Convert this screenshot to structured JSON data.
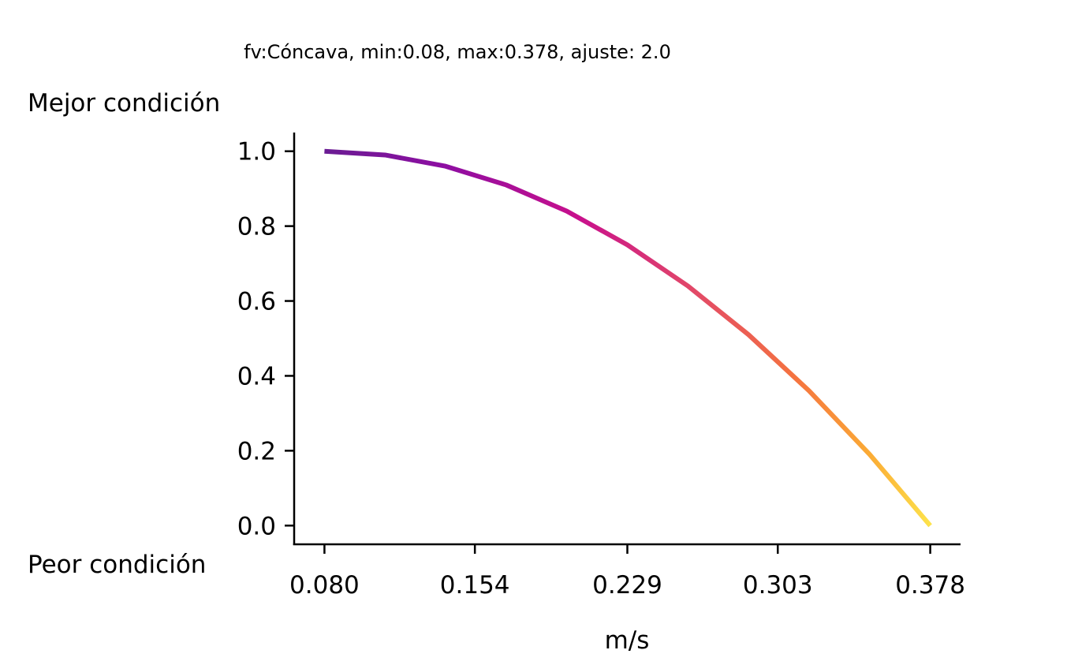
{
  "chart_data": {
    "type": "line",
    "title": "fv:Cóncava, min:0.08, max:0.378, ajuste: 2.0",
    "xlabel": "m/s",
    "ylabel_top": "Mejor condición",
    "ylabel_bottom": "Peor condición",
    "xlim": [
      0.0651,
      0.3929
    ],
    "ylim": [
      -0.05,
      1.05
    ],
    "xticks": [
      0.08,
      0.154,
      0.229,
      0.303,
      0.378
    ],
    "xtick_labels": [
      "0.080",
      "0.154",
      "0.229",
      "0.303",
      "0.378"
    ],
    "yticks": [
      0.0,
      0.2,
      0.4,
      0.6,
      0.8,
      1.0
    ],
    "ytick_labels": [
      "0.0",
      "0.2",
      "0.4",
      "0.6",
      "0.8",
      "1.0"
    ],
    "grid": false,
    "colormap": "plasma",
    "line_color_start": "#6a1c93",
    "line_color_end": "#fde24b",
    "series": [
      {
        "x": [
          0.08,
          0.1098,
          0.1396,
          0.1694,
          0.1992,
          0.229,
          0.2588,
          0.2886,
          0.3184,
          0.3482,
          0.378
        ],
        "y": [
          1.0,
          0.99,
          0.96,
          0.91,
          0.84,
          0.75,
          0.64,
          0.51,
          0.36,
          0.19,
          0.0
        ]
      }
    ]
  }
}
